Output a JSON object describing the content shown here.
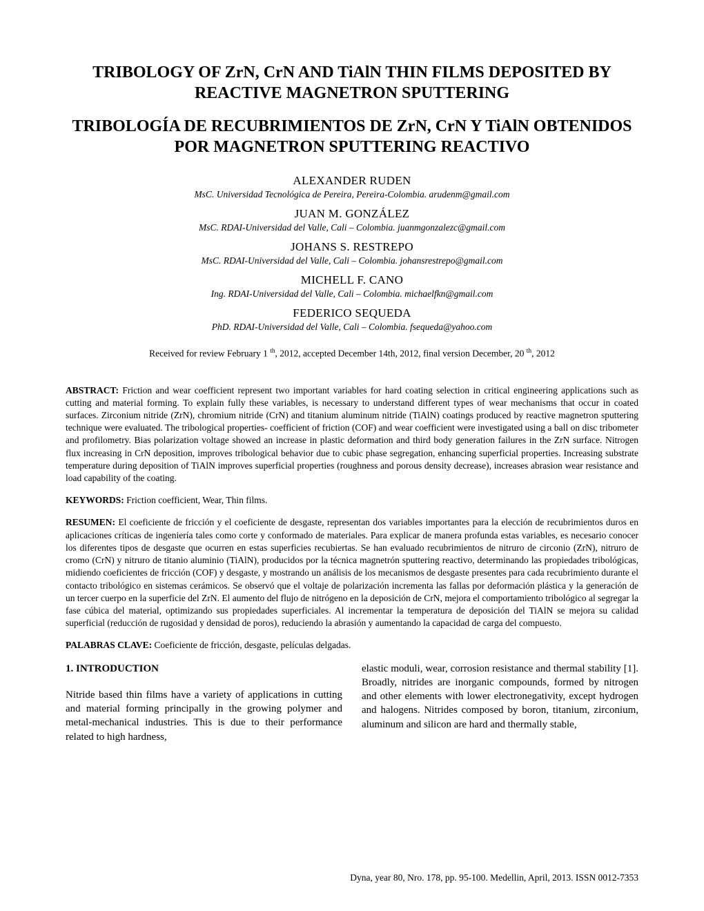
{
  "title_en": "TRIBOLOGY OF ZrN, CrN AND TiAlN THIN FILMS DEPOSITED BY REACTIVE MAGNETRON SPUTTERING",
  "title_es": "TRIBOLOGÍA DE RECUBRIMIENTOS DE ZrN, CrN Y TiAlN OBTENIDOS POR MAGNETRON SPUTTERING REACTIVO",
  "authors": [
    {
      "name": "ALEXANDER RUDEN",
      "affil": "MsC. Universidad Tecnológica de Pereira, Pereira-Colombia. arudenm@gmail.com"
    },
    {
      "name": "JUAN M. GONZÁLEZ",
      "affil": "MsC. RDAI-Universidad del Valle,  Cali – Colombia. juanmgonzalezc@gmail.com"
    },
    {
      "name": "JOHANS S. RESTREPO",
      "affil": "MsC. RDAI-Universidad del Valle, Cali – Colombia. johansrestrepo@gmail.com"
    },
    {
      "name": "MICHELL F. CANO",
      "affil": "Ing. RDAI-Universidad del Valle, Cali – Colombia. michaelfkn@gmail.com"
    },
    {
      "name": "FEDERICO SEQUEDA",
      "affil": "PhD. RDAI-Universidad del Valle, Cali – Colombia. fsequeda@yahoo.com"
    }
  ],
  "received_pre": "Received for review February 1 ",
  "received_sup1": "th",
  "received_mid": ", 2012, accepted December 14th, 2012, final version December, 20 ",
  "received_sup2": "th",
  "received_post": ", 2012",
  "abstract_label": "ABSTRACT: ",
  "abstract_text": "Friction and wear coefficient represent two important variables for hard coating selection in critical engineering applications such as cutting and material forming. To explain fully these variables, is necessary to understand different types of wear mechanisms that occur in coated surfaces. Zirconium nitride (ZrN), chromium nitride (CrN) and titanium aluminum nitride (TiAlN) coatings produced by reactive magnetron sputtering technique were evaluated. The tribological properties- coefficient of friction (COF) and wear coefficient were investigated using a ball on disc tribometer and profilometry. Bias polarization voltage showed an increase in plastic deformation and third body generation failures in the ZrN surface. Nitrogen flux increasing in CrN deposition, improves tribological behavior due to cubic phase segregation, enhancing superficial properties. Increasing substrate temperature during deposition of TiAlN improves superficial properties (roughness and porous density decrease), increases abrasion wear resistance and load capability of the coating.",
  "keywords_label": "KEYWORDS: ",
  "keywords_text": "Friction coefficient, Wear, Thin films.",
  "resumen_label": "RESUMEN: ",
  "resumen_text": "El coeficiente de fricción y el coeficiente de desgaste, representan dos variables importantes para la elección de recubrimientos duros en aplicaciones críticas de ingeniería tales como corte y conformado de materiales. Para explicar de manera profunda estas variables, es necesario conocer los diferentes tipos de desgaste que ocurren en estas superficies recubiertas. Se han evaluado recubrimientos de nitruro de circonio (ZrN), nitruro de cromo (CrN) y nitruro de titanio aluminio (TiAlN), producidos por la técnica magnetrón sputtering reactivo, determinando las propiedades tribológicas, midiendo coeficientes de fricción (COF) y desgaste, y mostrando un análisis de los mecanismos de desgaste presentes para cada recubrimiento durante el contacto tribológico en sistemas cerámicos. Se observó que el voltaje de polarización incrementa las fallas por deformación plástica y la generación de un tercer cuerpo en la superficie del ZrN. El aumento del flujo de nitrógeno en la deposición de CrN, mejora el comportamiento tribológico al segregar la fase cúbica del material, optimizando sus propiedades superficiales. Al incrementar la temperatura de deposición del TiAlN se mejora su calidad superficial (reducción de rugosidad y densidad de poros), reduciendo la abrasión y aumentando la capacidad de carga del compuesto.",
  "palabras_label": "PALABRAS CLAVE: ",
  "palabras_text": "Coeficiente de fricción, desgaste, películas delgadas.",
  "intro_heading": "1.  INTRODUCTION",
  "intro_col1": "Nitride based thin films have a variety of applications in cutting and material forming principally in the growing polymer and metal-mechanical industries. This is due to their performance related to high hardness,",
  "intro_col2": "elastic moduli, wear, corrosion resistance and thermal stability [1]. Broadly, nitrides are inorganic compounds, formed by nitrogen and other elements with lower electronegativity, except hydrogen and halogens. Nitrides composed by boron, titanium, zirconium, aluminum and silicon are hard and thermally stable,",
  "footer": "Dyna, year 80, Nro. 178, pp. 95-100.  Medellin, April, 2013.  ISSN 0012-7353"
}
